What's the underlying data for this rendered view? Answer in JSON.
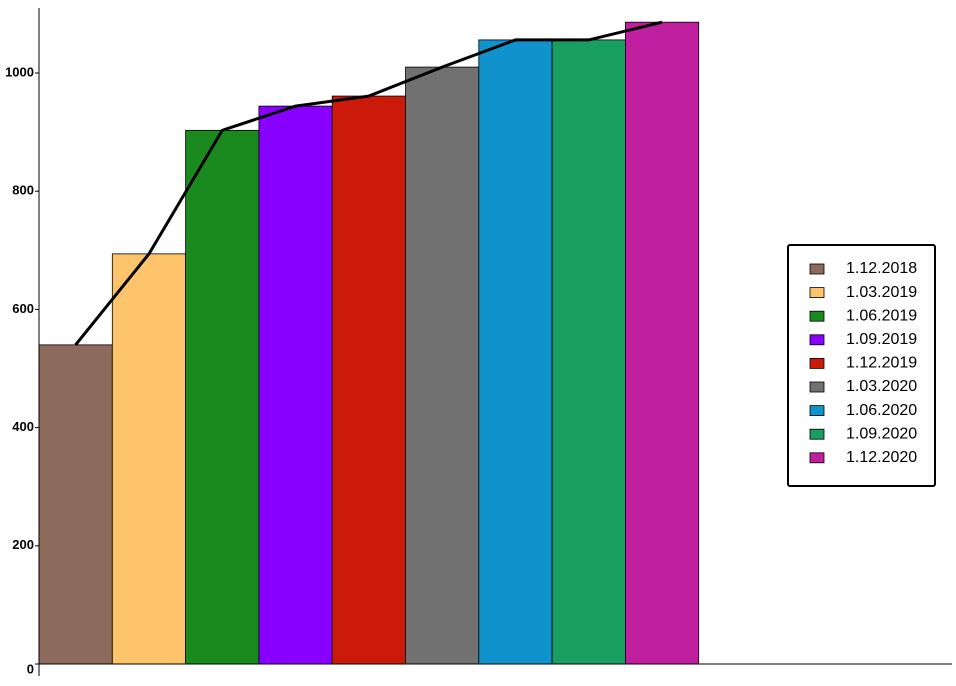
{
  "chart_data": {
    "type": "bar",
    "categories": [
      "1.12.2018",
      "1.03.2019",
      "1.06.2019",
      "1.09.2019",
      "1.12.2019",
      "1.03.2020",
      "1.06.2020",
      "1.09.2020",
      "1.12.2020"
    ],
    "values": [
      540,
      694,
      903,
      944,
      961,
      1010,
      1056,
      1056,
      1086
    ],
    "colors": [
      "#8d6b5c",
      "#fdc46c",
      "#1a8a1e",
      "#8800ff",
      "#cc1a0a",
      "#717171",
      "#1093cd",
      "#189e60",
      "#c020a0"
    ],
    "line_overlay": true,
    "line_color": "#000000",
    "ylim": [
      0,
      1110
    ],
    "yticks": [
      0,
      200,
      400,
      600,
      800,
      1000
    ],
    "grid": false,
    "legend": "right"
  }
}
